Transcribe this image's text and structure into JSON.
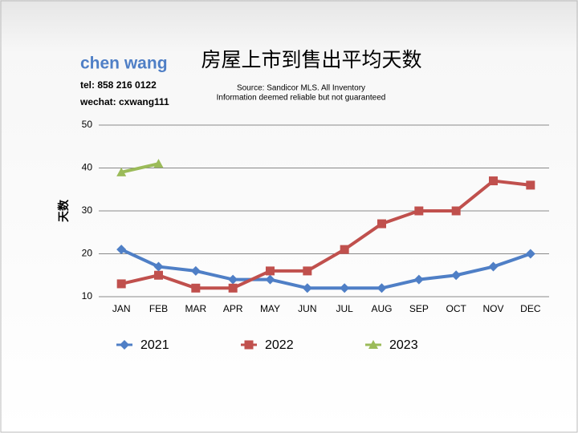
{
  "chart_data": {
    "type": "line",
    "title": "房屋上市到售出平均天数",
    "author": "chen wang",
    "phone": "tel: 858 216 0122",
    "wechat": "wechat: cxwang111",
    "source": "Source: Sandicor MLS. All Inventory",
    "disclaimer": "Information deemed reliable but not guaranteed",
    "y_label": "天数",
    "categories": [
      "JAN",
      "FEB",
      "MAR",
      "APR",
      "MAY",
      "JUN",
      "JUL",
      "AUG",
      "SEP",
      "OCT",
      "NOV",
      "DEC"
    ],
    "series": [
      {
        "name": "2021",
        "color": "#4f7fc6",
        "marker": "diamond",
        "values": [
          21,
          17,
          16,
          14,
          14,
          12,
          12,
          12,
          14,
          15,
          17,
          20
        ]
      },
      {
        "name": "2022",
        "color": "#c0504d",
        "marker": "square",
        "values": [
          13,
          15,
          12,
          12,
          16,
          16,
          21,
          27,
          30,
          30,
          37,
          36
        ]
      },
      {
        "name": "2023",
        "color": "#9bbb59",
        "marker": "triangle",
        "values": [
          39,
          41,
          null,
          null,
          null,
          null,
          null,
          null,
          null,
          null,
          null,
          null
        ]
      }
    ],
    "ylim": [
      10,
      50
    ],
    "yticks": [
      10,
      20,
      30,
      40,
      50
    ],
    "grid": true,
    "legend": "bottom"
  }
}
